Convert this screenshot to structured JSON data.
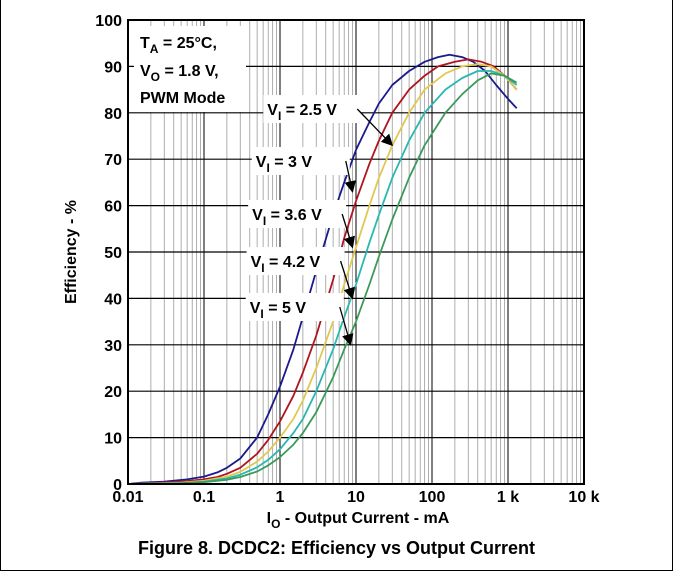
{
  "chart_data": {
    "type": "line",
    "x_scale": "log",
    "xlim": [
      0.01,
      10000
    ],
    "ylim": [
      0,
      100
    ],
    "grid": true,
    "x_ticks": [
      {
        "value": 0.01,
        "label": "0.01"
      },
      {
        "value": 0.1,
        "label": "0.1"
      },
      {
        "value": 1,
        "label": "1"
      },
      {
        "value": 10,
        "label": "10"
      },
      {
        "value": 100,
        "label": "100"
      },
      {
        "value": 1000,
        "label": "1 k"
      },
      {
        "value": 10000,
        "label": "10 k"
      }
    ],
    "y_ticks": [
      0,
      10,
      20,
      30,
      40,
      50,
      60,
      70,
      80,
      90,
      100
    ],
    "ylabel": "Efficiency - %",
    "xlabel_main": "I",
    "xlabel_sub": "O",
    "xlabel_rest": " - Output Current - mA",
    "conditions": {
      "line1_main": "T",
      "line1_sub": "A",
      "line1_rest": " = 25°C,",
      "line2_main": "V",
      "line2_sub": "O",
      "line2_rest": " = 1.8 V,",
      "line3": "PWM Mode"
    },
    "series": [
      {
        "label_main": "V",
        "label_sub": "I",
        "label_rest": " = 2.5 V",
        "color": "#1a1a8c",
        "label_at": [
          0.68,
          115
        ],
        "arrow_to": [
          30,
          73
        ],
        "points": [
          [
            0.01,
            0
          ],
          [
            0.015,
            0.3
          ],
          [
            0.03,
            0.5
          ],
          [
            0.06,
            1
          ],
          [
            0.1,
            1.6
          ],
          [
            0.15,
            2.5
          ],
          [
            0.2,
            3.5
          ],
          [
            0.3,
            5.5
          ],
          [
            0.5,
            10
          ],
          [
            0.7,
            15
          ],
          [
            1,
            21
          ],
          [
            1.5,
            29
          ],
          [
            2,
            36
          ],
          [
            3,
            46
          ],
          [
            5,
            58
          ],
          [
            7,
            65
          ],
          [
            10,
            72
          ],
          [
            15,
            78
          ],
          [
            20,
            82
          ],
          [
            30,
            86
          ],
          [
            50,
            89
          ],
          [
            80,
            91
          ],
          [
            120,
            92
          ],
          [
            170,
            92.5
          ],
          [
            250,
            92
          ],
          [
            350,
            91
          ],
          [
            500,
            89
          ],
          [
            700,
            86
          ],
          [
            1000,
            83
          ],
          [
            1300,
            81
          ]
        ]
      },
      {
        "label_main": "V",
        "label_sub": "I",
        "label_rest": " = 3 V",
        "color": "#b0141e",
        "label_at": [
          0.48,
          167
        ],
        "arrow_to": [
          9,
          63
        ],
        "points": [
          [
            0.01,
            0
          ],
          [
            0.02,
            0.2
          ],
          [
            0.05,
            0.5
          ],
          [
            0.1,
            1
          ],
          [
            0.15,
            1.5
          ],
          [
            0.2,
            2.2
          ],
          [
            0.3,
            3.5
          ],
          [
            0.5,
            6.5
          ],
          [
            0.7,
            9.5
          ],
          [
            1,
            13.5
          ],
          [
            1.5,
            19
          ],
          [
            2,
            24
          ],
          [
            3,
            32
          ],
          [
            5,
            44
          ],
          [
            7,
            53
          ],
          [
            10,
            61
          ],
          [
            15,
            69
          ],
          [
            20,
            74
          ],
          [
            30,
            80
          ],
          [
            50,
            85
          ],
          [
            80,
            88
          ],
          [
            120,
            90
          ],
          [
            200,
            91
          ],
          [
            300,
            91.5
          ],
          [
            450,
            91
          ],
          [
            650,
            90
          ],
          [
            900,
            88
          ],
          [
            1300,
            85
          ]
        ]
      },
      {
        "label_main": "V",
        "label_sub": "I",
        "label_rest": " = 3.6 V",
        "color": "#e0c850",
        "label_at": [
          0.43,
          220
        ],
        "arrow_to": [
          9,
          51
        ],
        "points": [
          [
            0.01,
            0
          ],
          [
            0.05,
            0.3
          ],
          [
            0.1,
            0.7
          ],
          [
            0.2,
            1.6
          ],
          [
            0.3,
            2.6
          ],
          [
            0.5,
            4.8
          ],
          [
            0.7,
            7
          ],
          [
            1,
            10
          ],
          [
            1.5,
            14
          ],
          [
            2,
            18
          ],
          [
            3,
            25
          ],
          [
            5,
            35
          ],
          [
            7,
            43
          ],
          [
            10,
            51
          ],
          [
            15,
            60
          ],
          [
            20,
            66
          ],
          [
            30,
            73
          ],
          [
            50,
            80
          ],
          [
            80,
            85
          ],
          [
            150,
            88.5
          ],
          [
            250,
            90
          ],
          [
            400,
            90.5
          ],
          [
            600,
            90
          ],
          [
            900,
            88
          ],
          [
            1300,
            85
          ]
        ]
      },
      {
        "label_main": "V",
        "label_sub": "I",
        "label_rest": " = 4.2 V",
        "color": "#29b8b0",
        "label_at": [
          0.41,
          267
        ],
        "arrow_to": [
          9,
          40
        ],
        "points": [
          [
            0.01,
            0
          ],
          [
            0.05,
            0.2
          ],
          [
            0.1,
            0.5
          ],
          [
            0.2,
            1.2
          ],
          [
            0.3,
            2
          ],
          [
            0.5,
            3.6
          ],
          [
            0.7,
            5.2
          ],
          [
            1,
            7.5
          ],
          [
            1.5,
            11
          ],
          [
            2,
            14
          ],
          [
            3,
            20
          ],
          [
            5,
            29
          ],
          [
            7,
            36
          ],
          [
            10,
            43
          ],
          [
            15,
            52
          ],
          [
            20,
            58
          ],
          [
            30,
            66
          ],
          [
            50,
            74
          ],
          [
            80,
            80
          ],
          [
            150,
            85
          ],
          [
            250,
            87.5
          ],
          [
            400,
            89
          ],
          [
            600,
            89
          ],
          [
            900,
            88
          ],
          [
            1300,
            86
          ]
        ]
      },
      {
        "label_main": "V",
        "label_sub": "I",
        "label_rest": " = 5 V",
        "color": "#3a9a5a",
        "label_at": [
          0.4,
          313
        ],
        "arrow_to": [
          8.5,
          30
        ],
        "points": [
          [
            0.01,
            0
          ],
          [
            0.05,
            0.2
          ],
          [
            0.1,
            0.4
          ],
          [
            0.2,
            0.9
          ],
          [
            0.3,
            1.5
          ],
          [
            0.5,
            2.7
          ],
          [
            0.7,
            4
          ],
          [
            1,
            5.8
          ],
          [
            1.5,
            8.5
          ],
          [
            2,
            11
          ],
          [
            3,
            15.5
          ],
          [
            5,
            23
          ],
          [
            7,
            29
          ],
          [
            10,
            35
          ],
          [
            15,
            43
          ],
          [
            20,
            49
          ],
          [
            30,
            57
          ],
          [
            50,
            66
          ],
          [
            80,
            73
          ],
          [
            150,
            80
          ],
          [
            250,
            84
          ],
          [
            400,
            87
          ],
          [
            600,
            88.5
          ],
          [
            900,
            88
          ],
          [
            1300,
            86.5
          ]
        ]
      }
    ]
  },
  "caption": "Figure 8. DCDC2: Efficiency vs Output Current"
}
